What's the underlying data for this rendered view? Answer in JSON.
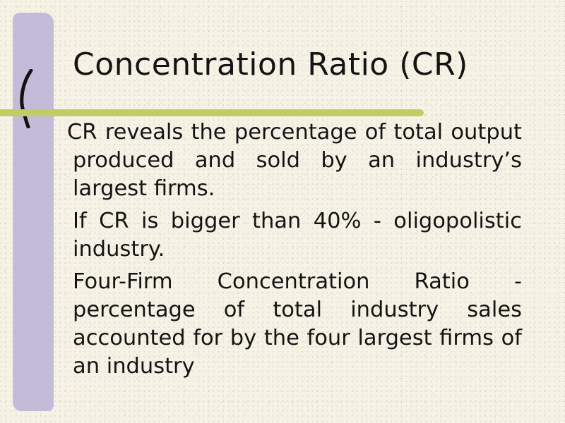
{
  "slide": {
    "title": "Concentration Ratio (CR)",
    "bullets": [
      "CR reveals the percentage of total output produced and sold by an industry’s largest firms.",
      "If CR is bigger than 40% - oligopolistic industry.",
      "Four-Firm Concentration Ratio - percentage of total industry sales accounted for by the four largest firms of an industry"
    ]
  },
  "theme": {
    "background": "#f6f3e6",
    "band_color": "#c3bcd9",
    "rule_color": "#c2cc64",
    "text_color": "#141414"
  }
}
